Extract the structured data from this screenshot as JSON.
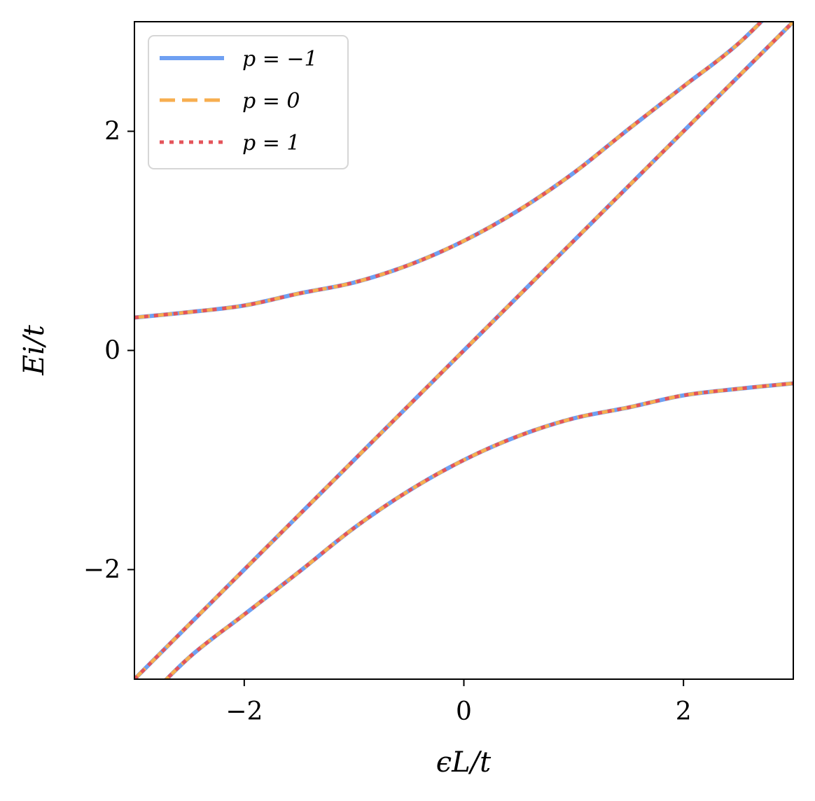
{
  "chart_data": {
    "type": "line",
    "xlabel": "ϵL/t",
    "ylabel": "Ei/t",
    "xlim": [
      -3,
      3
    ],
    "ylim": [
      -3,
      3
    ],
    "x_ticks": [
      -2,
      0,
      2
    ],
    "y_ticks": [
      -2,
      0,
      2
    ],
    "x_tick_labels": [
      "−2",
      "0",
      "2"
    ],
    "y_tick_labels": [
      "−2",
      "0",
      "2"
    ],
    "grid": false,
    "legend_position": "top-left",
    "series": [
      {
        "name": "p = −1",
        "color": "#6fa0f2",
        "style": "solid",
        "lines": [
          {
            "x": [
              -3,
              -2.5,
              -2,
              -1.5,
              -1,
              -0.5,
              0,
              0.5,
              1,
              1.5,
              2,
              2.5,
              3
            ],
            "y": [
              0.3,
              0.35,
              0.41,
              0.52,
              0.62,
              0.78,
              1.0,
              1.28,
              1.62,
              2.02,
              2.41,
              2.8,
              3.3
            ]
          },
          {
            "x": [
              -3,
              -2,
              -1,
              0,
              1,
              2,
              3
            ],
            "y": [
              -3,
              -2,
              -1,
              0,
              1,
              2,
              3
            ]
          },
          {
            "x": [
              -3,
              -2.5,
              -2,
              -1.5,
              -1,
              -0.5,
              0,
              0.5,
              1,
              1.5,
              2,
              2.5,
              3
            ],
            "y": [
              -3.3,
              -2.8,
              -2.41,
              -2.02,
              -1.62,
              -1.28,
              -1.0,
              -0.78,
              -0.62,
              -0.52,
              -0.41,
              -0.35,
              -0.3
            ]
          }
        ]
      },
      {
        "name": "p = 0",
        "color": "#f7ae4f",
        "style": "dashed",
        "lines": [
          {
            "x": [
              -3,
              -2.5,
              -2,
              -1.5,
              -1,
              -0.5,
              0,
              0.5,
              1,
              1.5,
              2,
              2.5,
              3
            ],
            "y": [
              0.3,
              0.35,
              0.41,
              0.52,
              0.62,
              0.78,
              1.0,
              1.28,
              1.62,
              2.02,
              2.41,
              2.8,
              3.3
            ]
          },
          {
            "x": [
              -3,
              -2,
              -1,
              0,
              1,
              2,
              3
            ],
            "y": [
              -3,
              -2,
              -1,
              0,
              1,
              2,
              3
            ]
          },
          {
            "x": [
              -3,
              -2.5,
              -2,
              -1.5,
              -1,
              -0.5,
              0,
              0.5,
              1,
              1.5,
              2,
              2.5,
              3
            ],
            "y": [
              -3.3,
              -2.8,
              -2.41,
              -2.02,
              -1.62,
              -1.28,
              -1.0,
              -0.78,
              -0.62,
              -0.52,
              -0.41,
              -0.35,
              -0.3
            ]
          }
        ]
      },
      {
        "name": "p = 1",
        "color": "#e4535a",
        "style": "dotted",
        "lines": [
          {
            "x": [
              -3,
              -2.5,
              -2,
              -1.5,
              -1,
              -0.5,
              0,
              0.5,
              1,
              1.5,
              2,
              2.5,
              3
            ],
            "y": [
              0.3,
              0.35,
              0.41,
              0.52,
              0.62,
              0.78,
              1.0,
              1.28,
              1.62,
              2.02,
              2.41,
              2.8,
              3.3
            ]
          },
          {
            "x": [
              -3,
              -2,
              -1,
              0,
              1,
              2,
              3
            ],
            "y": [
              -3,
              -2,
              -1,
              0,
              1,
              2,
              3
            ]
          },
          {
            "x": [
              -3,
              -2.5,
              -2,
              -1.5,
              -1,
              -0.5,
              0,
              0.5,
              1,
              1.5,
              2,
              2.5,
              3
            ],
            "y": [
              -3.3,
              -2.8,
              -2.41,
              -2.02,
              -1.62,
              -1.28,
              -1.0,
              -0.78,
              -0.62,
              -0.52,
              -0.41,
              -0.35,
              -0.3
            ]
          }
        ]
      }
    ]
  }
}
